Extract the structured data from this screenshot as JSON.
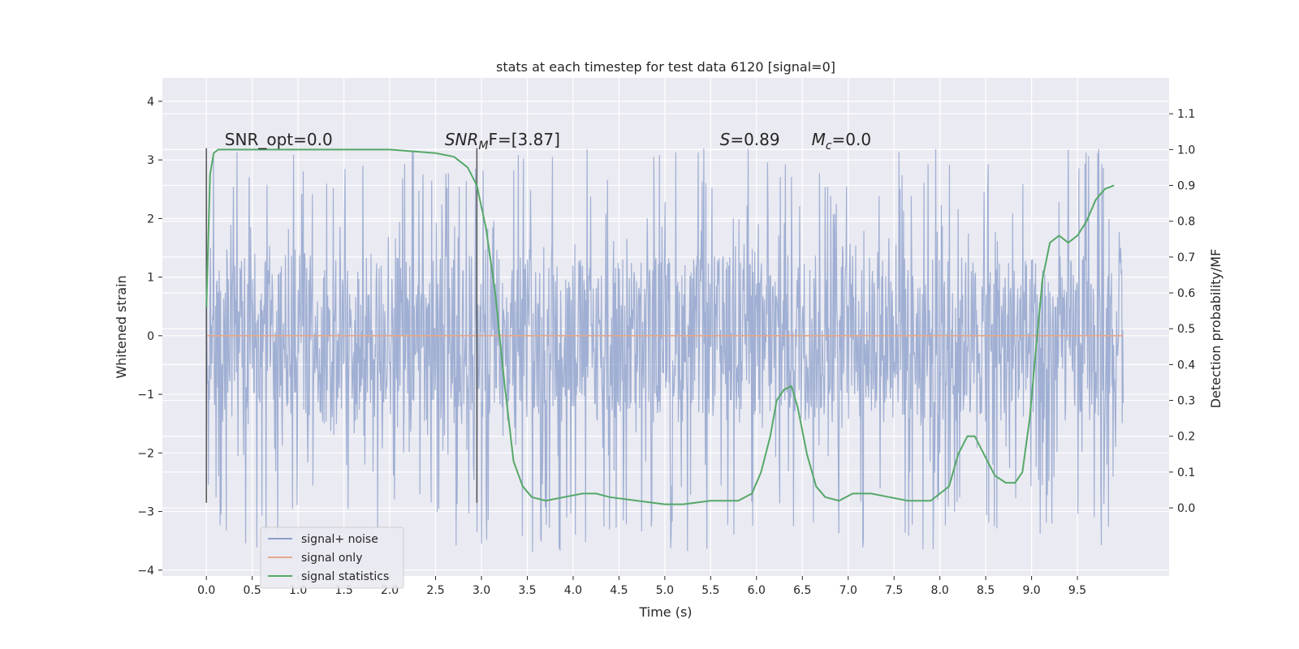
{
  "chart_data": {
    "type": "line",
    "title": "stats at each timestep for test data 6120 [signal=0]",
    "xlabel": "Time (s)",
    "ylabel": "Whitened strain",
    "y2label": "Detection probability/MF",
    "xlim": [
      -0.48,
      10.5
    ],
    "ylim": [
      -4.1,
      4.4
    ],
    "y2lim": [
      -0.19,
      1.2
    ],
    "xticks": [
      0.0,
      0.5,
      1.0,
      1.5,
      2.0,
      2.5,
      3.0,
      3.5,
      4.0,
      4.5,
      5.0,
      5.5,
      6.0,
      6.5,
      7.0,
      7.5,
      8.0,
      8.5,
      9.0,
      9.5
    ],
    "xtick_labels": [
      "0.0",
      "0.5",
      "1.0",
      "1.5",
      "2.0",
      "2.5",
      "3.0",
      "3.5",
      "4.0",
      "4.5",
      "5.0",
      "5.5",
      "6.0",
      "6.5",
      "7.0",
      "7.5",
      "8.0",
      "8.5",
      "9.0",
      "9.5"
    ],
    "yticks": [
      -4,
      -3,
      -2,
      -1,
      0,
      1,
      2,
      3,
      4
    ],
    "ytick_labels": [
      "−4",
      "−3",
      "−2",
      "−1",
      "0",
      "1",
      "2",
      "3",
      "4"
    ],
    "y2ticks": [
      0.0,
      0.1,
      0.2,
      0.3,
      0.4,
      0.5,
      0.6,
      0.7,
      0.8,
      0.9,
      1.0,
      1.1
    ],
    "y2tick_labels": [
      "0.0",
      "0.1",
      "0.2",
      "0.3",
      "0.4",
      "0.5",
      "0.6",
      "0.7",
      "0.8",
      "0.9",
      "1.0",
      "1.1"
    ],
    "grid": true,
    "legend_position": "bottom-left",
    "series": [
      {
        "name": "signal+ noise",
        "color": "#8da0cb",
        "axis": "left",
        "x_range": [
          0.0,
          10.0
        ],
        "band": [
          -1.5,
          1.4
        ],
        "envelope_max": 3.2,
        "envelope_min": -3.7
      },
      {
        "name": "signal only",
        "color": "#e5a88a",
        "axis": "left",
        "x": [
          0.0,
          10.0
        ],
        "y": [
          0.0,
          0.0
        ]
      },
      {
        "name": "signal statistics",
        "color": "#55a868",
        "axis": "right",
        "x": [
          0.0,
          0.04,
          0.08,
          0.13,
          0.2,
          0.3,
          0.5,
          1.0,
          1.5,
          2.0,
          2.5,
          2.7,
          2.85,
          2.95,
          3.05,
          3.15,
          3.25,
          3.35,
          3.45,
          3.55,
          3.7,
          3.9,
          4.1,
          4.25,
          4.4,
          4.7,
          5.0,
          5.2,
          5.5,
          5.8,
          5.95,
          6.05,
          6.15,
          6.22,
          6.3,
          6.38,
          6.45,
          6.55,
          6.65,
          6.75,
          6.9,
          7.05,
          7.25,
          7.45,
          7.65,
          7.9,
          8.1,
          8.2,
          8.3,
          8.38,
          8.48,
          8.6,
          8.72,
          8.82,
          8.9,
          8.98,
          9.05,
          9.12,
          9.2,
          9.3,
          9.4,
          9.5,
          9.6,
          9.7,
          9.8,
          9.9
        ],
        "y": [
          0.56,
          0.93,
          0.99,
          1.0,
          1.0,
          1.0,
          1.0,
          1.0,
          1.0,
          1.0,
          0.99,
          0.98,
          0.95,
          0.9,
          0.78,
          0.6,
          0.35,
          0.13,
          0.06,
          0.03,
          0.02,
          0.03,
          0.04,
          0.04,
          0.03,
          0.02,
          0.01,
          0.01,
          0.02,
          0.02,
          0.04,
          0.1,
          0.2,
          0.3,
          0.33,
          0.34,
          0.28,
          0.15,
          0.06,
          0.03,
          0.02,
          0.04,
          0.04,
          0.03,
          0.02,
          0.02,
          0.06,
          0.15,
          0.2,
          0.2,
          0.15,
          0.09,
          0.07,
          0.07,
          0.1,
          0.25,
          0.45,
          0.64,
          0.74,
          0.76,
          0.74,
          0.76,
          0.8,
          0.86,
          0.89,
          0.9
        ]
      }
    ],
    "vlines": [
      {
        "x": 0.0,
        "ymin": -2.85,
        "ymax": 3.2
      },
      {
        "x": 2.95,
        "ymin": -2.85,
        "ymax": 3.2
      }
    ],
    "annotations": [
      {
        "id": "snr-opt",
        "x": 0.2,
        "y": 3.25,
        "text": "SNR_opt=0.0"
      },
      {
        "id": "snr-mf",
        "x": 2.6,
        "y": 3.25,
        "prefix": "SNR",
        "sub": "M",
        "suffix": "F=[3.87]"
      },
      {
        "id": "s-val",
        "x": 5.6,
        "y": 3.25,
        "prefix": "S",
        "suffix": "=0.89"
      },
      {
        "id": "mc-val",
        "x": 6.6,
        "y": 3.25,
        "prefix": "M",
        "sub": "c",
        "suffix": "=0.0"
      }
    ]
  }
}
